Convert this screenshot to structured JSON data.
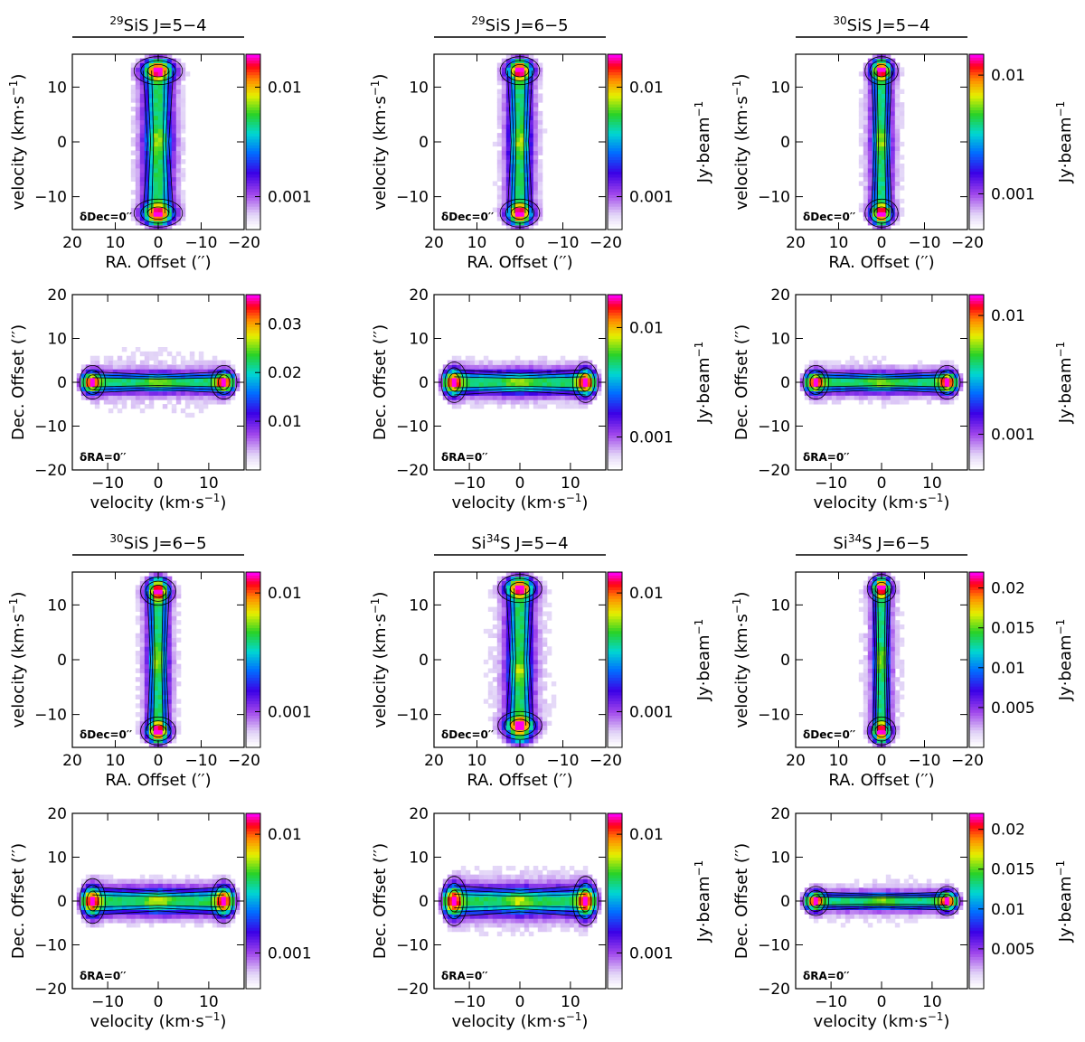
{
  "chart_data": [
    {
      "type": "heatmap",
      "panel": "pv-ra",
      "title_pre": "",
      "title_sup": "29",
      "title_main": "SiS J=5−4",
      "xlabel": "RA. Offset (′′)",
      "ylabel": "velocity (km·s",
      "ylabel_sup": "−1",
      "ylabel_tail": ")",
      "xlim": [
        20,
        -20
      ],
      "ylim": [
        -16,
        16
      ],
      "xticks": [
        20,
        10,
        0,
        -10,
        -20
      ],
      "xtick_labels": [
        "20",
        "10",
        "0",
        "−10",
        "−20"
      ],
      "yticks": [
        -10,
        0,
        10
      ],
      "ytick_labels": [
        "−10",
        "0",
        "10"
      ],
      "colorbar_ticks": [
        0.001,
        0.01
      ],
      "colorbar_labels": [
        "0.001",
        "0.01"
      ],
      "colorbar_range": [
        0.0005,
        0.02
      ],
      "colorbar_scale": "log",
      "colorbar_label": "Jy·beam",
      "colorbar_label_sup": "−1",
      "show_colorbar_label": false,
      "note": "δDec=0′′",
      "emission": {
        "core_width_arcsec": 2.2,
        "peak_velocities": [
          13,
          -13
        ],
        "center_velocity": 0,
        "extent_arcsec": 10
      },
      "contour_levels": [
        0.002,
        0.005,
        0.01
      ]
    },
    {
      "type": "heatmap",
      "panel": "pv-ra",
      "title_pre": "",
      "title_sup": "29",
      "title_main": "SiS J=6−5",
      "xlabel": "RA. Offset (′′)",
      "ylabel": "velocity (km·s",
      "ylabel_sup": "−1",
      "ylabel_tail": ")",
      "xlim": [
        20,
        -20
      ],
      "ylim": [
        -16,
        16
      ],
      "xticks": [
        20,
        10,
        0,
        -10,
        -20
      ],
      "xtick_labels": [
        "20",
        "10",
        "0",
        "−10",
        "−20"
      ],
      "yticks": [
        -10,
        0,
        10
      ],
      "ytick_labels": [
        "−10",
        "0",
        "10"
      ],
      "colorbar_ticks": [
        0.001,
        0.01
      ],
      "colorbar_labels": [
        "0.001",
        "0.01"
      ],
      "colorbar_range": [
        0.0005,
        0.02
      ],
      "colorbar_scale": "log",
      "colorbar_label": "Jy·beam",
      "colorbar_label_sup": "−1",
      "show_colorbar_label": true,
      "note": "δDec=0′′",
      "emission": {
        "core_width_arcsec": 1.8,
        "peak_velocities": [
          13,
          -13
        ],
        "center_velocity": 0,
        "extent_arcsec": 9
      },
      "contour_levels": [
        0.002,
        0.005,
        0.01
      ]
    },
    {
      "type": "heatmap",
      "panel": "pv-ra",
      "title_pre": "",
      "title_sup": "30",
      "title_main": "SiS J=5−4",
      "xlabel": "RA. Offset (′′)",
      "ylabel": "velocity (km·s",
      "ylabel_sup": "−1",
      "ylabel_tail": ")",
      "xlim": [
        20,
        -20
      ],
      "ylim": [
        -16,
        16
      ],
      "xticks": [
        20,
        10,
        0,
        -10,
        -20
      ],
      "xtick_labels": [
        "20",
        "10",
        "0",
        "−10",
        "−20"
      ],
      "yticks": [
        -10,
        0,
        10
      ],
      "ytick_labels": [
        "−10",
        "0",
        "10"
      ],
      "colorbar_ticks": [
        0.001,
        0.01
      ],
      "colorbar_labels": [
        "0.001",
        "0.01"
      ],
      "colorbar_range": [
        0.0005,
        0.015
      ],
      "colorbar_scale": "log",
      "colorbar_label": "Jy·beam",
      "colorbar_label_sup": "−1",
      "show_colorbar_label": true,
      "note": "δDec=0′′",
      "emission": {
        "core_width_arcsec": 1.5,
        "peak_velocities": [
          13,
          -13
        ],
        "center_velocity": 0,
        "extent_arcsec": 9
      },
      "contour_levels": [
        0.002,
        0.005,
        0.01
      ]
    },
    {
      "type": "heatmap",
      "panel": "pv-dec",
      "xlabel": "velocity (km·s",
      "xlabel_sup": "−1",
      "xlabel_tail": ")",
      "ylabel": "Dec. Offset (′′)",
      "xlim": [
        -17,
        17
      ],
      "ylim": [
        -20,
        20
      ],
      "xticks": [
        -10,
        0,
        10
      ],
      "xtick_labels": [
        "−10",
        "0",
        "10"
      ],
      "yticks": [
        -20,
        -10,
        0,
        10,
        20
      ],
      "ytick_labels": [
        "−20",
        "−10",
        "0",
        "10",
        "20"
      ],
      "colorbar_ticks": [
        0.01,
        0.02,
        0.03
      ],
      "colorbar_labels": [
        "0.01",
        "0.02",
        "0.03"
      ],
      "colorbar_range": [
        0.0,
        0.036
      ],
      "colorbar_scale": "linear",
      "colorbar_label": "Jy·beam",
      "colorbar_label_sup": "−1",
      "show_colorbar_label": false,
      "note": "δRA=0′′",
      "emission": {
        "core_width_arcsec": 1.5,
        "peak_velocities": [
          -13,
          13
        ],
        "extent_arcsec": 12
      },
      "contour_levels": [
        0.005,
        0.01,
        0.02
      ]
    },
    {
      "type": "heatmap",
      "panel": "pv-dec",
      "xlabel": "velocity (km·s",
      "xlabel_sup": "−1",
      "xlabel_tail": ")",
      "ylabel": "Dec. Offset (′′)",
      "xlim": [
        -17,
        17
      ],
      "ylim": [
        -20,
        20
      ],
      "xticks": [
        -10,
        0,
        10
      ],
      "xtick_labels": [
        "−10",
        "0",
        "10"
      ],
      "yticks": [
        -20,
        -10,
        0,
        10,
        20
      ],
      "ytick_labels": [
        "−20",
        "−10",
        "0",
        "10",
        "20"
      ],
      "colorbar_ticks": [
        0.001,
        0.01
      ],
      "colorbar_labels": [
        "0.001",
        "0.01"
      ],
      "colorbar_range": [
        0.0005,
        0.02
      ],
      "colorbar_scale": "log",
      "colorbar_label": "Jy·beam",
      "colorbar_label_sup": "−1",
      "show_colorbar_label": true,
      "note": "δRA=0′′",
      "emission": {
        "core_width_arcsec": 1.8,
        "peak_velocities": [
          -13,
          13
        ],
        "extent_arcsec": 10
      },
      "contour_levels": [
        0.002,
        0.005,
        0.01
      ]
    },
    {
      "type": "heatmap",
      "panel": "pv-dec",
      "xlabel": "velocity (km·s",
      "xlabel_sup": "−1",
      "xlabel_tail": ")",
      "ylabel": "Dec. Offset (′′)",
      "xlim": [
        -17,
        17
      ],
      "ylim": [
        -20,
        20
      ],
      "xticks": [
        -10,
        0,
        10
      ],
      "xtick_labels": [
        "−10",
        "0",
        "10"
      ],
      "yticks": [
        -20,
        -10,
        0,
        10,
        20
      ],
      "ytick_labels": [
        "−20",
        "−10",
        "0",
        "10",
        "20"
      ],
      "colorbar_ticks": [
        0.001,
        0.01
      ],
      "colorbar_labels": [
        "0.001",
        "0.01"
      ],
      "colorbar_range": [
        0.0005,
        0.015
      ],
      "colorbar_scale": "log",
      "colorbar_label": "Jy·beam",
      "colorbar_label_sup": "−1",
      "show_colorbar_label": true,
      "note": "δRA=0′′",
      "emission": {
        "core_width_arcsec": 1.5,
        "peak_velocities": [
          -13,
          13
        ],
        "extent_arcsec": 9
      },
      "contour_levels": [
        0.002,
        0.005,
        0.01
      ]
    },
    {
      "type": "heatmap",
      "panel": "pv-ra",
      "title_pre": "",
      "title_sup": "30",
      "title_main": "SiS J=6−5",
      "xlabel": "RA. Offset (′′)",
      "ylabel": "velocity (km·s",
      "ylabel_sup": "−1",
      "ylabel_tail": ")",
      "xlim": [
        20,
        -20
      ],
      "ylim": [
        -16,
        16
      ],
      "xticks": [
        20,
        10,
        0,
        -10,
        -20
      ],
      "xtick_labels": [
        "20",
        "10",
        "0",
        "−10",
        "−20"
      ],
      "yticks": [
        -10,
        0,
        10
      ],
      "ytick_labels": [
        "−10",
        "0",
        "10"
      ],
      "colorbar_ticks": [
        0.001,
        0.01
      ],
      "colorbar_labels": [
        "0.001",
        "0.01"
      ],
      "colorbar_range": [
        0.0005,
        0.015
      ],
      "colorbar_scale": "log",
      "colorbar_label": "Jy·beam",
      "colorbar_label_sup": "−1",
      "show_colorbar_label": false,
      "note": "δDec=0′′",
      "emission": {
        "core_width_arcsec": 1.6,
        "peak_velocities": [
          12.5,
          -13
        ],
        "center_velocity": 0,
        "extent_arcsec": 9
      },
      "contour_levels": [
        0.002,
        0.005,
        0.01
      ]
    },
    {
      "type": "heatmap",
      "panel": "pv-ra",
      "title_pre": "Si",
      "title_sup": "34",
      "title_main": "S J=5−4",
      "xlabel": "RA. Offset (′′)",
      "ylabel": "velocity (km·s",
      "ylabel_sup": "−1",
      "ylabel_tail": ")",
      "xlim": [
        20,
        -20
      ],
      "ylim": [
        -16,
        16
      ],
      "xticks": [
        20,
        10,
        0,
        -10,
        -20
      ],
      "xtick_labels": [
        "20",
        "10",
        "0",
        "−10",
        "−20"
      ],
      "yticks": [
        -10,
        0,
        10
      ],
      "ytick_labels": [
        "−10",
        "0",
        "10"
      ],
      "colorbar_ticks": [
        0.001,
        0.01
      ],
      "colorbar_labels": [
        "0.001",
        "0.01"
      ],
      "colorbar_range": [
        0.0005,
        0.015
      ],
      "colorbar_scale": "log",
      "colorbar_label": "Jy·beam",
      "colorbar_label_sup": "−1",
      "show_colorbar_label": true,
      "note": "δDec=0′′",
      "emission": {
        "core_width_arcsec": 2.0,
        "peak_velocities": [
          13,
          -12
        ],
        "center_velocity": -2,
        "extent_arcsec": 13
      },
      "contour_levels": [
        0.002,
        0.005,
        0.01
      ]
    },
    {
      "type": "heatmap",
      "panel": "pv-ra",
      "title_pre": "Si",
      "title_sup": "34",
      "title_main": "S J=6−5",
      "xlabel": "RA. Offset (′′)",
      "ylabel": "velocity (km·s",
      "ylabel_sup": "−1",
      "ylabel_tail": ")",
      "xlim": [
        20,
        -20
      ],
      "ylim": [
        -16,
        16
      ],
      "xticks": [
        20,
        10,
        0,
        -10,
        -20
      ],
      "xtick_labels": [
        "20",
        "10",
        "0",
        "−10",
        "−20"
      ],
      "yticks": [
        -10,
        0,
        10
      ],
      "ytick_labels": [
        "−10",
        "0",
        "10"
      ],
      "colorbar_ticks": [
        0.005,
        0.01,
        0.015,
        0.02
      ],
      "colorbar_labels": [
        "0.005",
        "0.01",
        "0.015",
        "0.02"
      ],
      "colorbar_range": [
        0.0,
        0.022
      ],
      "colorbar_scale": "linear",
      "colorbar_label": "Jy·beam",
      "colorbar_label_sup": "−1",
      "show_colorbar_label": true,
      "note": "δDec=0′′",
      "emission": {
        "core_width_arcsec": 1.3,
        "peak_velocities": [
          13,
          -13
        ],
        "center_velocity": 0,
        "extent_arcsec": 9
      },
      "contour_levels": [
        0.003,
        0.006,
        0.012
      ]
    },
    {
      "type": "heatmap",
      "panel": "pv-dec",
      "xlabel": "velocity (km·s",
      "xlabel_sup": "−1",
      "xlabel_tail": ")",
      "ylabel": "Dec. Offset (′′)",
      "xlim": [
        -17,
        17
      ],
      "ylim": [
        -20,
        20
      ],
      "xticks": [
        -10,
        0,
        10
      ],
      "xtick_labels": [
        "−10",
        "0",
        "10"
      ],
      "yticks": [
        -20,
        -10,
        0,
        10,
        20
      ],
      "ytick_labels": [
        "−20",
        "−10",
        "0",
        "10",
        "20"
      ],
      "colorbar_ticks": [
        0.001,
        0.01
      ],
      "colorbar_labels": [
        "0.001",
        "0.01"
      ],
      "colorbar_range": [
        0.0005,
        0.015
      ],
      "colorbar_scale": "log",
      "colorbar_label": "Jy·beam",
      "colorbar_label_sup": "−1",
      "show_colorbar_label": false,
      "note": "δRA=0′′",
      "emission": {
        "core_width_arcsec": 2.0,
        "peak_velocities": [
          -13,
          13
        ],
        "extent_arcsec": 9
      },
      "contour_levels": [
        0.002,
        0.005,
        0.01
      ]
    },
    {
      "type": "heatmap",
      "panel": "pv-dec",
      "xlabel": "velocity (km·s",
      "xlabel_sup": "−1",
      "xlabel_tail": ")",
      "ylabel": "Dec. Offset (′′)",
      "xlim": [
        -17,
        17
      ],
      "ylim": [
        -20,
        20
      ],
      "xticks": [
        -10,
        0,
        10
      ],
      "xtick_labels": [
        "−10",
        "0",
        "10"
      ],
      "yticks": [
        -20,
        -10,
        0,
        10,
        20
      ],
      "ytick_labels": [
        "−20",
        "−10",
        "0",
        "10",
        "20"
      ],
      "colorbar_ticks": [
        0.001,
        0.01
      ],
      "colorbar_labels": [
        "0.001",
        "0.01"
      ],
      "colorbar_range": [
        0.0005,
        0.015
      ],
      "colorbar_scale": "log",
      "colorbar_label": "Jy·beam",
      "colorbar_label_sup": "−1",
      "show_colorbar_label": true,
      "note": "δRA=0′′",
      "emission": {
        "core_width_arcsec": 2.2,
        "peak_velocities": [
          -13,
          13
        ],
        "extent_arcsec": 13
      },
      "contour_levels": [
        0.002,
        0.005,
        0.01
      ]
    },
    {
      "type": "heatmap",
      "panel": "pv-dec",
      "xlabel": "velocity (km·s",
      "xlabel_sup": "−1",
      "xlabel_tail": ")",
      "ylabel": "Dec. Offset (′′)",
      "xlim": [
        -17,
        17
      ],
      "ylim": [
        -20,
        20
      ],
      "xticks": [
        -10,
        0,
        10
      ],
      "xtick_labels": [
        "−10",
        "0",
        "10"
      ],
      "yticks": [
        -20,
        -10,
        0,
        10,
        20
      ],
      "ytick_labels": [
        "−20",
        "−10",
        "0",
        "10",
        "20"
      ],
      "colorbar_ticks": [
        0.005,
        0.01,
        0.015,
        0.02
      ],
      "colorbar_labels": [
        "0.005",
        "0.01",
        "0.015",
        "0.02"
      ],
      "colorbar_range": [
        0.0,
        0.022
      ],
      "colorbar_scale": "linear",
      "colorbar_label": "Jy·beam",
      "colorbar_label_sup": "−1",
      "show_colorbar_label": true,
      "note": "δRA=0′′",
      "emission": {
        "core_width_arcsec": 1.3,
        "peak_velocities": [
          -13,
          13
        ],
        "extent_arcsec": 9
      },
      "contour_levels": [
        0.003,
        0.006,
        0.012
      ]
    }
  ]
}
